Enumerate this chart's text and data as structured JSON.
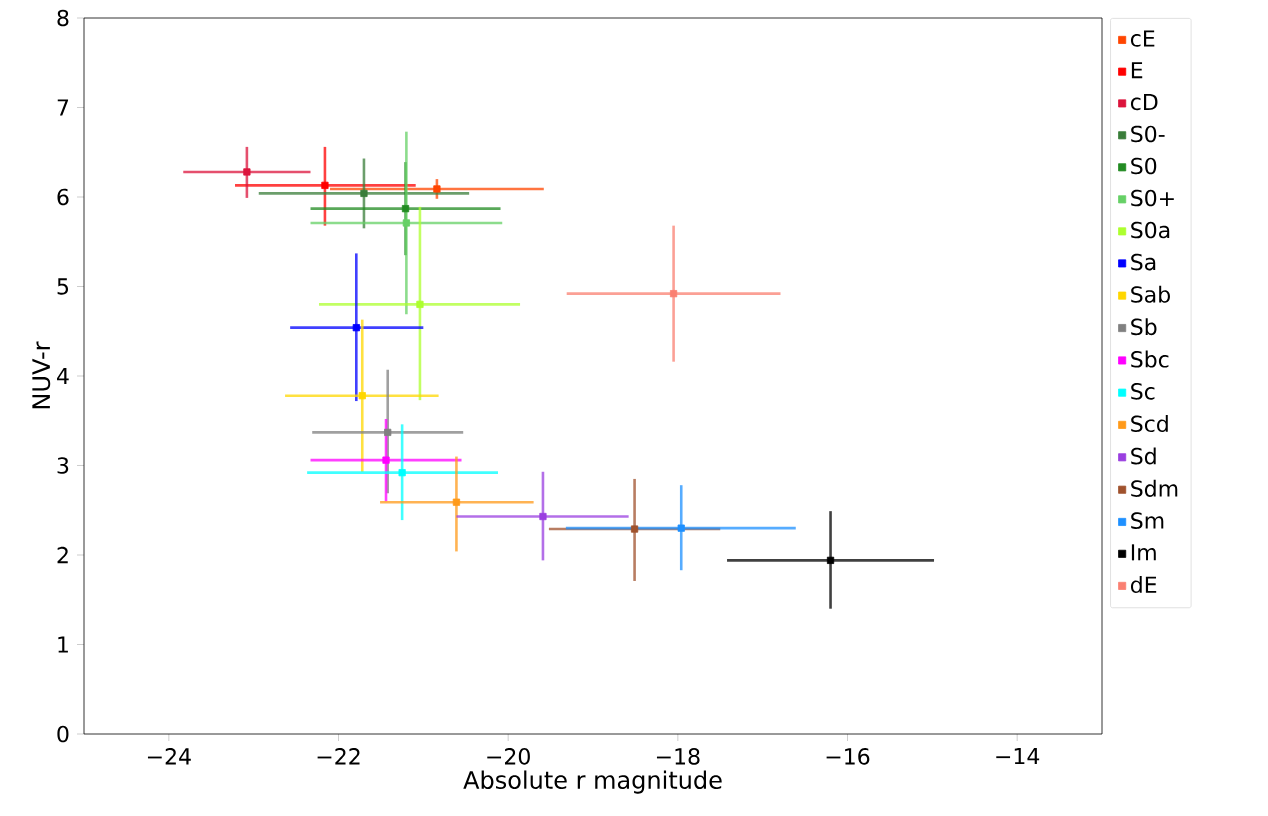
{
  "chart_data": {
    "type": "scatter",
    "xlabel": "Absolute r magnitude",
    "ylabel": "NUV-r",
    "xlim": [
      -25,
      -13
    ],
    "ylim": [
      0,
      8
    ],
    "xticks": [
      {
        "value": -24,
        "label": "−24"
      },
      {
        "value": -22,
        "label": "−22"
      },
      {
        "value": -20,
        "label": "−20"
      },
      {
        "value": -18,
        "label": "−18"
      },
      {
        "value": -16,
        "label": "−16"
      },
      {
        "value": -14,
        "label": "−14"
      }
    ],
    "yticks": [
      0,
      1,
      2,
      3,
      4,
      5,
      6,
      7,
      8
    ],
    "legend": "right",
    "marker": "square",
    "grid": false,
    "series": [
      {
        "name": "cE",
        "color": "#ff4500",
        "x": [
          -20.84
        ],
        "values": [
          6.09
        ],
        "xerrors": [
          [
            -22.1,
            -19.58
          ]
        ],
        "errors": [
          [
            5.98,
            6.2
          ]
        ]
      },
      {
        "name": "E",
        "color": "#ff0000",
        "x": [
          -22.16
        ],
        "values": [
          6.13
        ],
        "xerrors": [
          [
            -23.22,
            -21.09
          ]
        ],
        "errors": [
          [
            5.68,
            6.56
          ]
        ]
      },
      {
        "name": "cD",
        "color": "#dc143c",
        "x": [
          -23.08
        ],
        "values": [
          6.28
        ],
        "xerrors": [
          [
            -23.83,
            -22.33
          ]
        ],
        "errors": [
          [
            5.99,
            6.56
          ]
        ]
      },
      {
        "name": "S0-",
        "color": "#3a7d3a",
        "x": [
          -21.7
        ],
        "values": [
          6.04
        ],
        "xerrors": [
          [
            -22.94,
            -20.46
          ]
        ],
        "errors": [
          [
            5.65,
            6.43
          ]
        ]
      },
      {
        "name": "S0",
        "color": "#228b22",
        "x": [
          -21.21
        ],
        "values": [
          5.87
        ],
        "xerrors": [
          [
            -22.33,
            -20.09
          ]
        ],
        "errors": [
          [
            5.35,
            6.39
          ]
        ]
      },
      {
        "name": "S0+",
        "color": "#66d066",
        "x": [
          -21.2
        ],
        "values": [
          5.71
        ],
        "xerrors": [
          [
            -22.33,
            -20.07
          ]
        ],
        "errors": [
          [
            4.69,
            6.73
          ]
        ]
      },
      {
        "name": "S0a",
        "color": "#adff2f",
        "x": [
          -21.04
        ],
        "values": [
          4.8
        ],
        "xerrors": [
          [
            -22.23,
            -19.86
          ]
        ],
        "errors": [
          [
            3.73,
            5.89
          ]
        ]
      },
      {
        "name": "Sa",
        "color": "#0000ff",
        "x": [
          -21.79
        ],
        "values": [
          4.54
        ],
        "xerrors": [
          [
            -22.57,
            -21.0
          ]
        ],
        "errors": [
          [
            3.72,
            5.37
          ]
        ]
      },
      {
        "name": "Sab",
        "color": "#ffd700",
        "x": [
          -21.72
        ],
        "values": [
          3.78
        ],
        "xerrors": [
          [
            -22.63,
            -20.82
          ]
        ],
        "errors": [
          [
            2.93,
            4.63
          ]
        ]
      },
      {
        "name": "Sb",
        "color": "#808080",
        "x": [
          -21.42
        ],
        "values": [
          3.37
        ],
        "xerrors": [
          [
            -22.31,
            -20.53
          ]
        ],
        "errors": [
          [
            2.69,
            4.07
          ]
        ]
      },
      {
        "name": "Sbc",
        "color": "#ff00ff",
        "x": [
          -21.44
        ],
        "values": [
          3.06
        ],
        "xerrors": [
          [
            -22.33,
            -20.55
          ]
        ],
        "errors": [
          [
            2.6,
            3.52
          ]
        ]
      },
      {
        "name": "Sc",
        "color": "#00ffff",
        "x": [
          -21.25
        ],
        "values": [
          2.92
        ],
        "xerrors": [
          [
            -22.37,
            -20.12
          ]
        ],
        "errors": [
          [
            2.39,
            3.46
          ]
        ]
      },
      {
        "name": "Scd",
        "color": "#ff9a1a",
        "x": [
          -20.61
        ],
        "values": [
          2.59
        ],
        "xerrors": [
          [
            -21.51,
            -19.7
          ]
        ],
        "errors": [
          [
            2.04,
            3.1
          ]
        ]
      },
      {
        "name": "Sd",
        "color": "#9a3fe0",
        "x": [
          -19.59
        ],
        "values": [
          2.43
        ],
        "xerrors": [
          [
            -20.61,
            -18.58
          ]
        ],
        "errors": [
          [
            1.94,
            2.93
          ]
        ]
      },
      {
        "name": "Sdm",
        "color": "#a0522d",
        "x": [
          -18.51
        ],
        "values": [
          2.29
        ],
        "xerrors": [
          [
            -19.52,
            -17.5
          ]
        ],
        "errors": [
          [
            1.71,
            2.85
          ]
        ]
      },
      {
        "name": "Sm",
        "color": "#1e90ff",
        "x": [
          -17.96
        ],
        "values": [
          2.3
        ],
        "xerrors": [
          [
            -19.32,
            -16.61
          ]
        ],
        "errors": [
          [
            1.83,
            2.78
          ]
        ]
      },
      {
        "name": "Im",
        "color": "#000000",
        "x": [
          -16.2
        ],
        "values": [
          1.94
        ],
        "xerrors": [
          [
            -17.42,
            -14.98
          ]
        ],
        "errors": [
          [
            1.4,
            2.49
          ]
        ]
      },
      {
        "name": "dE",
        "color": "#fa8072",
        "x": [
          -18.05
        ],
        "values": [
          4.92
        ],
        "xerrors": [
          [
            -19.31,
            -16.79
          ]
        ],
        "errors": [
          [
            4.16,
            5.68
          ]
        ]
      }
    ]
  }
}
